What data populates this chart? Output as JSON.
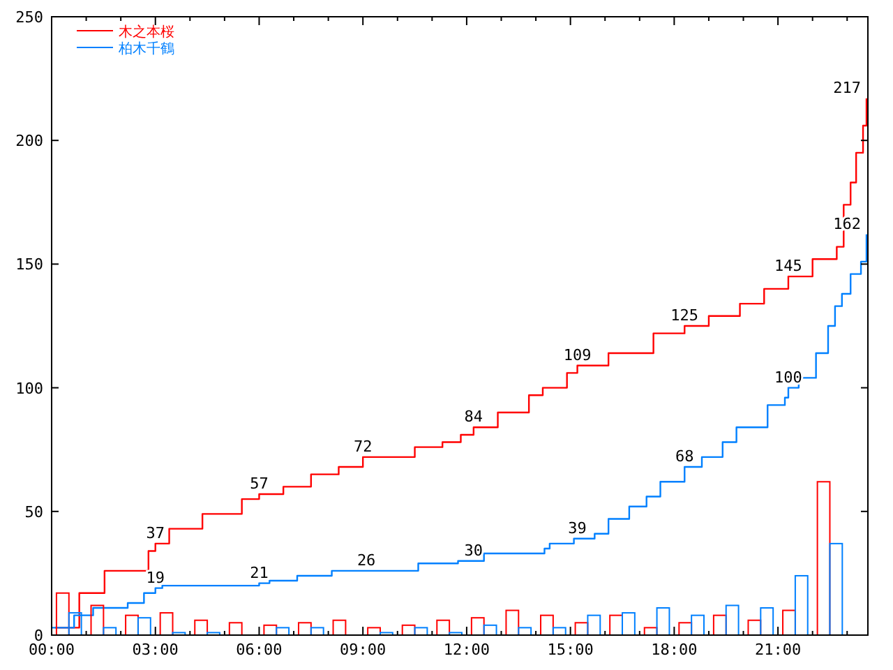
{
  "chart_data": {
    "type": "step",
    "xlim": [
      0,
      23.6
    ],
    "xticks": [
      {
        "value": 0,
        "label": "00:00"
      },
      {
        "value": 1,
        "label": null
      },
      {
        "value": 2,
        "label": null
      },
      {
        "value": 3,
        "label": "03:00"
      },
      {
        "value": 4,
        "label": null
      },
      {
        "value": 5,
        "label": null
      },
      {
        "value": 6,
        "label": "06:00"
      },
      {
        "value": 7,
        "label": null
      },
      {
        "value": 8,
        "label": null
      },
      {
        "value": 9,
        "label": "09:00"
      },
      {
        "value": 10,
        "label": null
      },
      {
        "value": 11,
        "label": null
      },
      {
        "value": 12,
        "label": "12:00"
      },
      {
        "value": 13,
        "label": null
      },
      {
        "value": 14,
        "label": null
      },
      {
        "value": 15,
        "label": "15:00"
      },
      {
        "value": 16,
        "label": null
      },
      {
        "value": 17,
        "label": null
      },
      {
        "value": 18,
        "label": "18:00"
      },
      {
        "value": 19,
        "label": null
      },
      {
        "value": 20,
        "label": null
      },
      {
        "value": 21,
        "label": "21:00"
      },
      {
        "value": 22,
        "label": null
      },
      {
        "value": 23,
        "label": null
      }
    ],
    "ylim": [
      0,
      250
    ],
    "yticks": [
      0,
      50,
      100,
      150,
      200,
      250
    ],
    "legend": "top left",
    "series": [
      {
        "name": "木之本桜",
        "color": "#ff0000",
        "x": [
          0.1,
          0.8,
          1.53,
          2.8,
          3,
          3.4,
          4.36,
          5.5,
          6,
          6.7,
          7.5,
          8.3,
          9,
          10.5,
          11.3,
          11.83,
          12.2,
          12.9,
          13.8,
          14.2,
          14.9,
          15.2,
          16.1,
          17.4,
          18.2,
          18.3,
          19,
          19.9,
          20.6,
          21.3,
          22,
          22.7,
          22.9,
          23.1,
          23.26,
          23.46,
          23.56
        ],
        "values": [
          3,
          17,
          26,
          34,
          37,
          43,
          49,
          55,
          57,
          60,
          65,
          68,
          72,
          76,
          78,
          81,
          84,
          90,
          97,
          100,
          106,
          109,
          114,
          122,
          122,
          125,
          129,
          134,
          140,
          145,
          152,
          157,
          174,
          183,
          195,
          206,
          217
        ]
      },
      {
        "name": "柏木千鶴",
        "color": "#0080ff",
        "x": [
          0,
          0.65,
          1.2,
          2.2,
          2.67,
          3,
          3.2,
          4.4,
          6,
          6.3,
          7.1,
          8.1,
          9.1,
          10.1,
          10.6,
          11.75,
          12.2,
          12.5,
          14.25,
          14.4,
          15.1,
          15.2,
          15.7,
          16.1,
          16.7,
          17.2,
          17.6,
          18.3,
          18.8,
          19.4,
          19.8,
          20.7,
          21.2,
          21.3,
          21.6,
          22.1,
          22.45,
          22.65,
          22.85,
          23.1,
          23.4,
          23.56
        ],
        "values": [
          3,
          8,
          11,
          13,
          17,
          19,
          20,
          20,
          21,
          22,
          24,
          26,
          26,
          26,
          29,
          30,
          30,
          33,
          35,
          37,
          39,
          39,
          41,
          47,
          52,
          56,
          62,
          68,
          72,
          78,
          84,
          93,
          96,
          100,
          104,
          114,
          125,
          133,
          138,
          146,
          151,
          162
        ]
      },
      {
        "type": "bar",
        "color": "#ff0000",
        "x": [
          0.5,
          1.5,
          2.5,
          3.5,
          4.5,
          5.5,
          6.5,
          7.5,
          8.5,
          9.5,
          10.5,
          11.5,
          12.5,
          13.5,
          14.5,
          15.5,
          16.5,
          17.5,
          18.5,
          19.5,
          20.5,
          21.5,
          22.5
        ],
        "values": [
          17,
          12,
          8,
          9,
          6,
          5,
          4,
          5,
          6,
          3,
          4,
          6,
          7,
          10,
          8,
          5,
          8,
          3,
          5,
          8,
          6,
          10,
          62
        ]
      },
      {
        "type": "bar",
        "color": "#0080ff",
        "x": [
          0.5,
          1.5,
          2.5,
          3.5,
          4.5,
          5.5,
          6.5,
          7.5,
          8.5,
          9.5,
          10.5,
          11.5,
          12.5,
          13.5,
          14.5,
          15.5,
          16.5,
          17.5,
          18.5,
          19.5,
          20.5,
          21.5,
          22.5
        ],
        "values": [
          9,
          3,
          7,
          1,
          1,
          0,
          3,
          3,
          0,
          1,
          3,
          1,
          4,
          3,
          3,
          8,
          9,
          11,
          8,
          12,
          11,
          24,
          37
        ]
      }
    ],
    "annotations": [
      {
        "text": "37",
        "x": 3,
        "y": 37
      },
      {
        "text": "57",
        "x": 6,
        "y": 57
      },
      {
        "text": "72",
        "x": 9,
        "y": 72
      },
      {
        "text": "84",
        "x": 12.2,
        "y": 84
      },
      {
        "text": "109",
        "x": 15.2,
        "y": 109
      },
      {
        "text": "125",
        "x": 18.3,
        "y": 125
      },
      {
        "text": "145",
        "x": 21.3,
        "y": 145
      },
      {
        "text": "217",
        "x": 23.56,
        "y": 217
      },
      {
        "text": "19",
        "x": 3,
        "y": 19
      },
      {
        "text": "21",
        "x": 6,
        "y": 21
      },
      {
        "text": "26",
        "x": 9.1,
        "y": 26
      },
      {
        "text": "30",
        "x": 12.2,
        "y": 30
      },
      {
        "text": "39",
        "x": 15.2,
        "y": 39
      },
      {
        "text": "68",
        "x": 18.3,
        "y": 68
      },
      {
        "text": "100",
        "x": 21.3,
        "y": 100
      },
      {
        "text": "162",
        "x": 23.56,
        "y": 162
      }
    ]
  }
}
